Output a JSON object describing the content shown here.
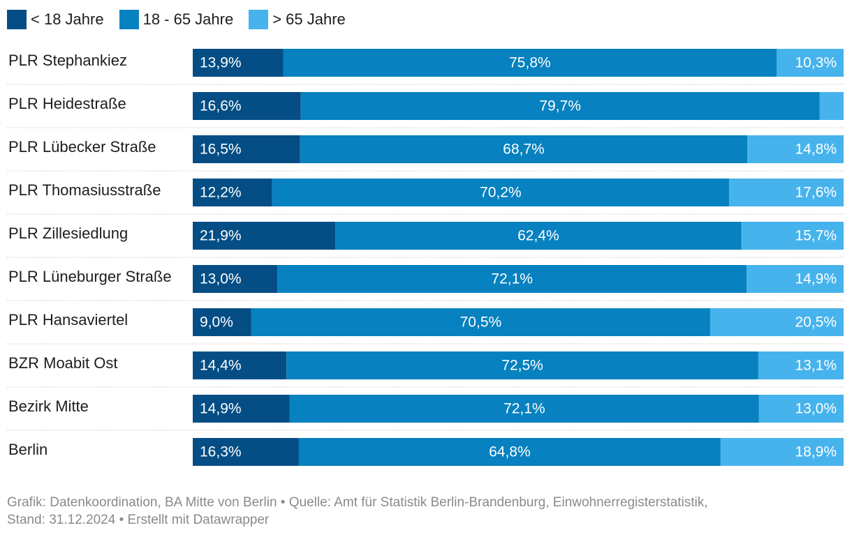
{
  "chart_data": {
    "type": "bar",
    "orientation": "horizontal",
    "stacked": true,
    "percent": true,
    "xlim": [
      0,
      100
    ],
    "legend_position": "top-left",
    "categories": [
      "PLR Stephankiez",
      "PLR Heidestraße",
      "PLR Lübecker Straße",
      "PLR Thomasiusstraße",
      "PLR Zillesiedlung",
      "PLR Lüneburger Straße",
      "PLR Hansaviertel",
      "BZR Moabit Ost",
      "Bezirk Mitte",
      "Berlin"
    ],
    "series": [
      {
        "name": "< 18 Jahre",
        "color": "#044e85",
        "values": [
          13.9,
          16.6,
          16.5,
          12.2,
          21.9,
          13.0,
          9.0,
          14.4,
          14.9,
          16.3
        ],
        "labels": [
          "13,9%",
          "16,6%",
          "16,5%",
          "12,2%",
          "21,9%",
          "13,0%",
          "9,0%",
          "14,4%",
          "14,9%",
          "16,3%"
        ]
      },
      {
        "name": "18 - 65 Jahre",
        "color": "#0781bf",
        "values": [
          75.8,
          79.7,
          68.7,
          70.2,
          62.4,
          72.1,
          70.5,
          72.5,
          72.1,
          64.8
        ],
        "labels": [
          "75,8%",
          "79,7%",
          "68,7%",
          "70,2%",
          "62,4%",
          "72,1%",
          "70,5%",
          "72,5%",
          "72,1%",
          "64,8%"
        ]
      },
      {
        "name": "> 65 Jahre",
        "color": "#47b3ec",
        "values": [
          10.3,
          3.7,
          14.8,
          17.6,
          15.7,
          14.9,
          20.5,
          13.1,
          13.0,
          18.9
        ],
        "labels": [
          "10,3%",
          "",
          "14,8%",
          "17,6%",
          "15,7%",
          "14,9%",
          "20,5%",
          "13,1%",
          "13,0%",
          "18,9%"
        ]
      }
    ]
  },
  "footer": {
    "line1": "Grafik: Datenkoordination, BA Mitte von Berlin • Quelle: Amt für Statistik Berlin-Brandenburg, Einwohnerregisterstatistik,",
    "line2": "Stand: 31.12.2024 • Erstellt mit Datawrapper"
  }
}
